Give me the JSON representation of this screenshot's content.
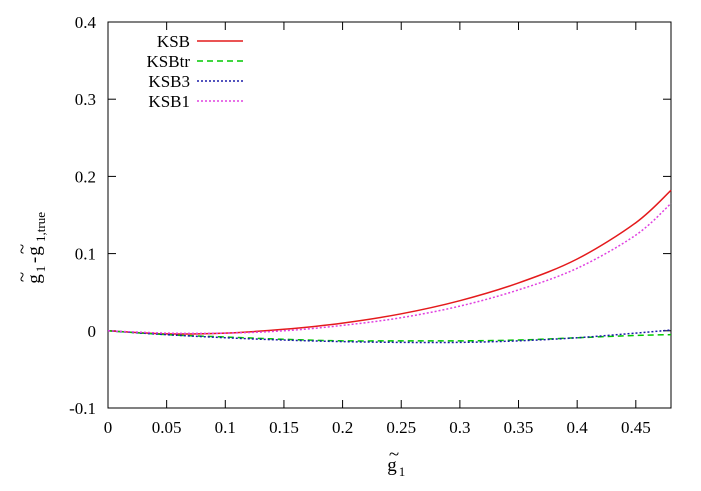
{
  "chart_data": {
    "type": "line",
    "title": "",
    "xlabel": {
      "base": "g",
      "sub": "1",
      "accent": "~"
    },
    "ylabel": {
      "base1": "g",
      "sub1": "1",
      "accent": "~",
      "minus": "-",
      "base2": "g",
      "sub2": "1,true"
    },
    "xlim": [
      0,
      0.48
    ],
    "ylim": [
      -0.1,
      0.4
    ],
    "xticks": [
      0,
      0.05,
      0.1,
      0.15,
      0.2,
      0.25,
      0.3,
      0.35,
      0.4,
      0.45
    ],
    "xtick_labels": [
      "0",
      "0.05",
      "0.1",
      "0.15",
      "0.2",
      "0.25",
      "0.3",
      "0.35",
      "0.4",
      "0.45"
    ],
    "yticks": [
      -0.1,
      0,
      0.1,
      0.2,
      0.3,
      0.4
    ],
    "ytick_labels": [
      "-0.1",
      "0",
      "0.1",
      "0.2",
      "0.3",
      "0.4"
    ],
    "grid": false,
    "legend_position": "top-left",
    "x": [
      0,
      0.05,
      0.1,
      0.15,
      0.2,
      0.25,
      0.3,
      0.35,
      0.4,
      0.45,
      0.48
    ],
    "series": [
      {
        "name": "KSB",
        "color": "#e41a1c",
        "dash": "solid",
        "values": [
          0,
          -0.004,
          -0.003,
          0.002,
          0.01,
          0.022,
          0.039,
          0.062,
          0.093,
          0.14,
          0.182
        ]
      },
      {
        "name": "KSBtr",
        "color": "#00c800",
        "dash": "dashed",
        "values": [
          0,
          -0.005,
          -0.008,
          -0.011,
          -0.013,
          -0.013,
          -0.013,
          -0.012,
          -0.009,
          -0.006,
          -0.005
        ]
      },
      {
        "name": "KSB3",
        "color": "#1a1aa8",
        "dash": "dotted",
        "values": [
          0,
          -0.005,
          -0.009,
          -0.012,
          -0.014,
          -0.015,
          -0.015,
          -0.013,
          -0.009,
          -0.003,
          0.001
        ]
      },
      {
        "name": "KSB1",
        "color": "#e040e0",
        "dash": "dotted",
        "values": [
          0,
          -0.003,
          -0.003,
          0.0,
          0.007,
          0.017,
          0.032,
          0.053,
          0.081,
          0.124,
          0.165
        ]
      }
    ]
  }
}
